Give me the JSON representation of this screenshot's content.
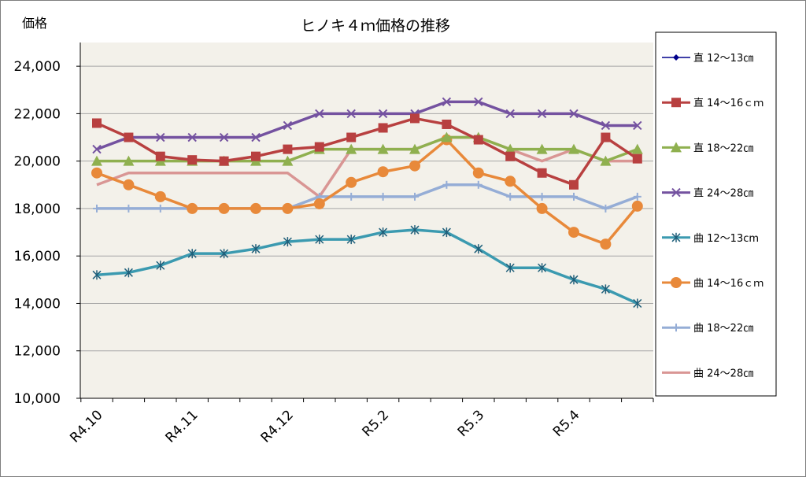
{
  "chart_data": {
    "type": "line",
    "title": "ヒノキ４ｍ価格の推移",
    "ylabel": "価格",
    "xlabel": "",
    "ylim": [
      10000,
      25000
    ],
    "yticks": [
      "10,000",
      "12,000",
      "14,000",
      "16,000",
      "18,000",
      "20,000",
      "22,000",
      "24,000"
    ],
    "ytick_values": [
      10000,
      12000,
      14000,
      16000,
      18000,
      20000,
      22000,
      24000
    ],
    "x_tick_labels": [
      {
        "label": "R4.10",
        "index": 0
      },
      {
        "label": "R4.11",
        "index": 3
      },
      {
        "label": "R4.12",
        "index": 6
      },
      {
        "label": "R5.2",
        "index": 9
      },
      {
        "label": "R5.3",
        "index": 12
      },
      {
        "label": "R5.4",
        "index": 15
      }
    ],
    "point_count": 18,
    "grid": true,
    "legend_position": "right",
    "plot_background": "#f3f1ea",
    "series": [
      {
        "name": "直 12～13㎝",
        "color": "#00008b",
        "marker": "diamond",
        "values": []
      },
      {
        "name": "直 14～16ｃｍ",
        "color": "#b84040",
        "marker": "square",
        "values": [
          21600,
          21000,
          20200,
          20050,
          20000,
          20200,
          20500,
          20600,
          21000,
          21400,
          21800,
          21550,
          20900,
          20200,
          19500,
          19000,
          21000,
          20100
        ]
      },
      {
        "name": "直 18～22㎝",
        "color": "#8fb04f",
        "marker": "triangle",
        "values": [
          20000,
          20000,
          20000,
          20000,
          20000,
          20000,
          20000,
          20500,
          20500,
          20500,
          20500,
          21000,
          21000,
          20500,
          20500,
          20500,
          20000,
          20500
        ]
      },
      {
        "name": "直 24～28㎝",
        "color": "#7452a0",
        "marker": "x",
        "values": [
          20500,
          21000,
          21000,
          21000,
          21000,
          21000,
          21500,
          22000,
          22000,
          22000,
          22000,
          22500,
          22500,
          22000,
          22000,
          22000,
          21500,
          21500
        ]
      },
      {
        "name": "曲 12～13cm",
        "color": "#3b9ab0",
        "marker": "star",
        "values": [
          15200,
          15300,
          15600,
          16100,
          16100,
          16300,
          16600,
          16700,
          16700,
          17000,
          17100,
          17000,
          16300,
          15500,
          15500,
          15000,
          14600,
          14000
        ]
      },
      {
        "name": "曲 14～16ｃｍ",
        "color": "#e8893a",
        "marker": "circle",
        "values": [
          19500,
          19000,
          18500,
          18000,
          18000,
          18000,
          18000,
          18200,
          19100,
          19550,
          19800,
          20900,
          19500,
          19150,
          18000,
          17000,
          16500,
          18100
        ]
      },
      {
        "name": "曲 18～22㎝",
        "color": "#95add6",
        "marker": "plus",
        "values": [
          18000,
          18000,
          18000,
          18000,
          18000,
          18000,
          18000,
          18500,
          18500,
          18500,
          18500,
          19000,
          19000,
          18500,
          18500,
          18500,
          18000,
          18500
        ]
      },
      {
        "name": "曲 24～28㎝",
        "color": "#d99694",
        "marker": "none",
        "values": [
          19000,
          19500,
          19500,
          19500,
          19500,
          19500,
          19500,
          18500,
          20500,
          20500,
          20500,
          21000,
          21000,
          20500,
          20000,
          20500,
          20000,
          20000
        ]
      }
    ]
  }
}
